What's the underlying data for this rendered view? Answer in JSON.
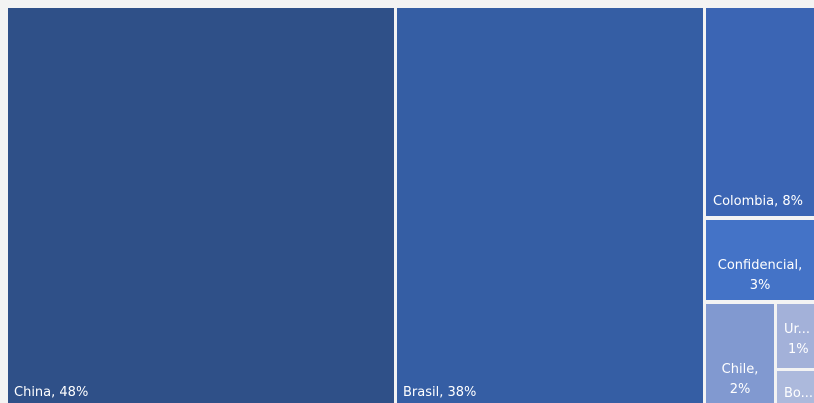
{
  "chart_data": {
    "type": "treemap",
    "items": [
      {
        "name": "China",
        "value": 48,
        "label": "China, 48%",
        "color": "#2f5088"
      },
      {
        "name": "Brasil",
        "value": 38,
        "label": "Brasil, 38%",
        "color": "#355ea4"
      },
      {
        "name": "Colombia",
        "value": 8,
        "label": "Colombia, 8%",
        "color": "#3b65b4"
      },
      {
        "name": "Confidencial",
        "value": 3,
        "label_lines": [
          "Confidencial,",
          "3%"
        ],
        "color": "#4473c7"
      },
      {
        "name": "Chile",
        "value": 2,
        "label_lines": [
          "Chile,",
          "2%"
        ],
        "color": "#8199d0"
      },
      {
        "name": "Uruguay",
        "value": 1,
        "label_lines": [
          "Ur...",
          "1%"
        ],
        "color": "#a3b1d9"
      },
      {
        "name": "Bolivia",
        "value": 0.5,
        "label": "Bo...",
        "color": "#acb9dc"
      }
    ]
  }
}
